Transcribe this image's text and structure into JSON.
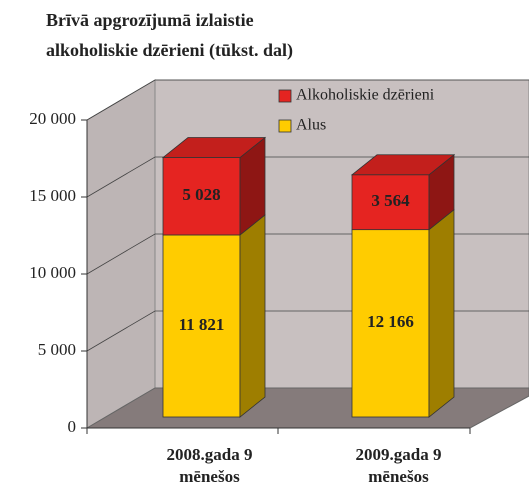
{
  "chart_data": {
    "type": "bar3d_stacked",
    "title": [
      "Brīvā apgrozījumā izlaistie",
      "alkoholiskie dzērieni (tūkst. dal)"
    ],
    "categories": [
      "2008.gada 9 mēnešos",
      "2009.gada 9 mēnešos"
    ],
    "series": [
      {
        "name": "Alkoholiskie dzērieni",
        "color": "#e52421",
        "values": [
          5028,
          3564
        ],
        "value_labels": [
          "5 028",
          "3 564"
        ]
      },
      {
        "name": "Alus",
        "color": "#ffcc00",
        "values": [
          11821,
          12166
        ],
        "value_labels": [
          "11 821",
          "12 166"
        ]
      }
    ],
    "ylim": [
      0,
      20000
    ],
    "yticks": [
      0,
      {
        "value": 5000,
        "label": "5 000"
      },
      {
        "value": 10000,
        "label": "10 000"
      },
      {
        "value": 15000,
        "label": "15 000"
      },
      {
        "value": 20000,
        "label": "20 000"
      }
    ],
    "grid": true,
    "legend": "top-right"
  }
}
